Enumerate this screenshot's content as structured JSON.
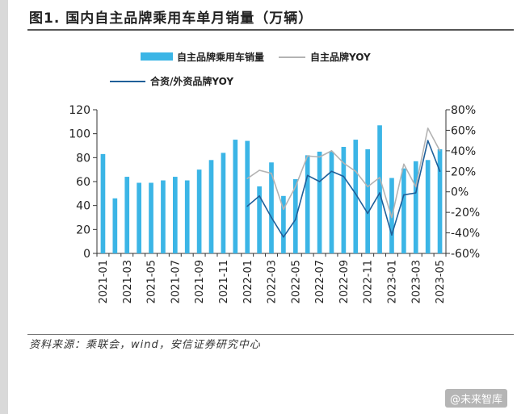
{
  "title": "图1. 国内自主品牌乘用车单月销量（万辆）",
  "source": "资料来源：乘联会，wind，安信证券研究中心",
  "watermark": "@未来智库",
  "colors": {
    "bar": "#3bb5e6",
    "line_yoy": "#b3b3b3",
    "line_jv": "#1f5f99"
  },
  "chart_data": {
    "type": "bar",
    "title": "图1. 国内自主品牌乘用车单月销量（万辆）",
    "categories": [
      "2021-01",
      "2021-02",
      "2021-03",
      "2021-04",
      "2021-05",
      "2021-06",
      "2021-07",
      "2021-08",
      "2021-09",
      "2021-10",
      "2021-11",
      "2021-12",
      "2022-01",
      "2022-02",
      "2022-03",
      "2022-04",
      "2022-05",
      "2022-06",
      "2022-07",
      "2022-08",
      "2022-09",
      "2022-10",
      "2022-11",
      "2022-12",
      "2023-01",
      "2023-02",
      "2023-03",
      "2023-04",
      "2023-05"
    ],
    "x_tick_labels": [
      "2021-01",
      "2021-03",
      "2021-05",
      "2021-07",
      "2021-09",
      "2021-11",
      "2022-01",
      "2022-03",
      "2022-05",
      "2022-07",
      "2022-09",
      "2022-11",
      "2023-01",
      "2023-03",
      "2023-05"
    ],
    "y_left": {
      "ylim": [
        0,
        120
      ],
      "ticks": [
        "0",
        "20",
        "40",
        "60",
        "80",
        "100",
        "120"
      ]
    },
    "y_right": {
      "ylim": [
        -60,
        80
      ],
      "ticks": [
        "-60%",
        "-40%",
        "-20%",
        "0%",
        "20%",
        "40%",
        "60%",
        "80%"
      ]
    },
    "legend_position": "top",
    "series": [
      {
        "name": "自主品牌乘用车销量",
        "kind": "bar",
        "axis": "left",
        "values": [
          83,
          46,
          64,
          59,
          59,
          61,
          64,
          61,
          70,
          78,
          84,
          95,
          94,
          56,
          76,
          48,
          62,
          82,
          85,
          85,
          89,
          95,
          87,
          107,
          63,
          71,
          77,
          78,
          87
        ]
      },
      {
        "name": "自主品牌YOY",
        "kind": "line",
        "axis": "right",
        "x": [
          "2022-01",
          "2022-02",
          "2022-03",
          "2022-04",
          "2022-05",
          "2022-06",
          "2022-07",
          "2022-08",
          "2022-09",
          "2022-10",
          "2022-11",
          "2022-12",
          "2023-01",
          "2023-02",
          "2023-03",
          "2023-04",
          "2023-05"
        ],
        "values": [
          13,
          21,
          18,
          -17,
          5,
          35,
          34,
          40,
          28,
          20,
          5,
          14,
          -25,
          27,
          5,
          62,
          40
        ]
      },
      {
        "name": "合资/外资品牌YOY",
        "kind": "line",
        "axis": "right",
        "x": [
          "2022-01",
          "2022-02",
          "2022-03",
          "2022-04",
          "2022-05",
          "2022-06",
          "2022-07",
          "2022-08",
          "2022-09",
          "2022-10",
          "2022-11",
          "2022-12",
          "2023-01",
          "2023-02",
          "2023-03",
          "2023-04",
          "2023-05"
        ],
        "values": [
          -14,
          -4,
          -25,
          -44,
          -27,
          16,
          10,
          20,
          15,
          -2,
          -21,
          -1,
          -42,
          -3,
          -1,
          50,
          20
        ]
      }
    ]
  }
}
